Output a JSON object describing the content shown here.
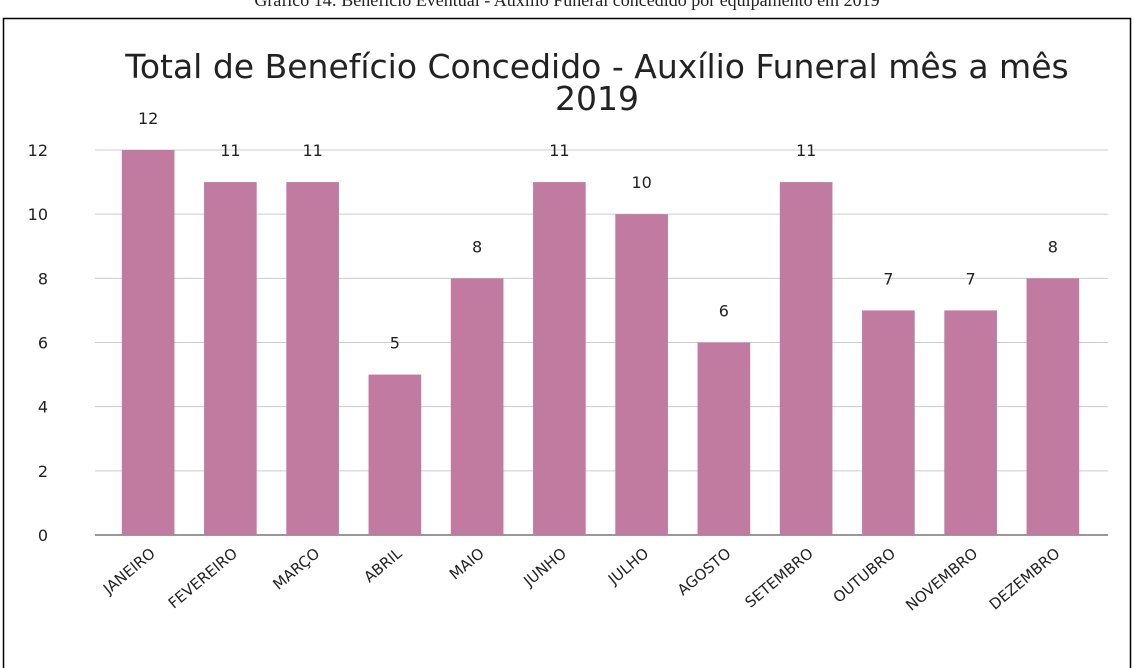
{
  "caption": "Gráfico 14: Benefício Eventual - Auxílio Funeral concedido por equipamento em 2019",
  "chart_data": {
    "type": "bar",
    "title": [
      "Total de Benefício Concedido  - Auxílio Funeral mês a mês",
      "2019"
    ],
    "categories": [
      "JANEIRO",
      "FEVEREIRO",
      "MARÇO",
      "ABRIL",
      "MAIO",
      "JUNHO",
      "JULHO",
      "AGOSTO",
      "SETEMBRO",
      "OUTUBRO",
      "NOVEMBRO",
      "DEZEMBRO"
    ],
    "values": [
      12,
      11,
      11,
      5,
      8,
      11,
      10,
      6,
      11,
      7,
      7,
      8
    ],
    "color": "#c27ba0",
    "ylim": [
      0,
      12
    ],
    "yticks": [
      0,
      2,
      4,
      6,
      8,
      10,
      12
    ],
    "grid": true
  }
}
